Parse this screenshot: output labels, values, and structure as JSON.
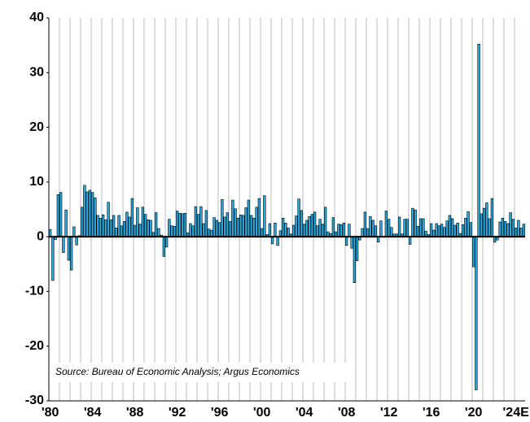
{
  "chart_data": {
    "type": "bar",
    "annotation": "Source: Bureau of Economic Analysis; Argus Economics",
    "categories": [
      "'80",
      null,
      null,
      null,
      null,
      null,
      null,
      null,
      null,
      null,
      null,
      null,
      null,
      null,
      null,
      null,
      "'84",
      null,
      null,
      null,
      null,
      null,
      null,
      null,
      null,
      null,
      null,
      null,
      null,
      null,
      null,
      null,
      "'88",
      null,
      null,
      null,
      null,
      null,
      null,
      null,
      null,
      null,
      null,
      null,
      null,
      null,
      null,
      null,
      "'92",
      null,
      null,
      null,
      null,
      null,
      null,
      null,
      null,
      null,
      null,
      null,
      null,
      null,
      null,
      null,
      "'96",
      null,
      null,
      null,
      null,
      null,
      null,
      null,
      null,
      null,
      null,
      null,
      null,
      null,
      null,
      null,
      "'00",
      null,
      null,
      null,
      null,
      null,
      null,
      null,
      null,
      null,
      null,
      null,
      null,
      null,
      null,
      null,
      "'04",
      null,
      null,
      null,
      null,
      null,
      null,
      null,
      null,
      null,
      null,
      null,
      null,
      null,
      null,
      null,
      "'08",
      null,
      null,
      null,
      null,
      null,
      null,
      null,
      null,
      null,
      null,
      null,
      null,
      null,
      null,
      null,
      "'12",
      null,
      null,
      null,
      null,
      null,
      null,
      null,
      null,
      null,
      null,
      null,
      null,
      null,
      null,
      null,
      "'16",
      null,
      null,
      null,
      null,
      null,
      null,
      null,
      null,
      null,
      null,
      null,
      null,
      null,
      null,
      null,
      "'20",
      null,
      null,
      null,
      null,
      null,
      null,
      null,
      null,
      null,
      null,
      null,
      null,
      null,
      null,
      null,
      "'24E",
      null,
      null,
      null
    ],
    "values": [
      1.3,
      -8.0,
      -0.5,
      7.7,
      8.1,
      -2.9,
      4.9,
      -4.3,
      -6.1,
      1.8,
      -1.5,
      0.2,
      5.4,
      9.4,
      8.2,
      8.5,
      8.1,
      7.1,
      3.9,
      3.4,
      4.0,
      3.1,
      6.3,
      3.1,
      3.9,
      1.6,
      3.9,
      2.0,
      2.8,
      4.5,
      3.6,
      7.0,
      2.1,
      5.3,
      2.3,
      5.4,
      4.1,
      3.1,
      3.0,
      0.8,
      4.4,
      1.5,
      0.3,
      -3.6,
      -1.9,
      3.2,
      2.0,
      1.9,
      4.7,
      4.3,
      4.2,
      4.3,
      0.7,
      2.4,
      2.0,
      5.5,
      4.1,
      5.5,
      2.4,
      4.8,
      1.4,
      1.2,
      3.5,
      3.0,
      2.6,
      6.8,
      3.6,
      4.4,
      2.8,
      6.7,
      5.1,
      3.4,
      4.0,
      3.9,
      5.3,
      6.7,
      3.9,
      3.4,
      5.4,
      7.0,
      1.5,
      7.5,
      0.4,
      2.4,
      -1.3,
      2.5,
      -1.6,
      1.1,
      3.4,
      2.5,
      1.6,
      0.5,
      2.1,
      3.8,
      6.9,
      4.8,
      2.3,
      3.0,
      3.7,
      4.1,
      4.5,
      2.0,
      3.2,
      2.3,
      5.4,
      0.9,
      0.6,
      3.5,
      0.9,
      2.3,
      2.2,
      2.5,
      -1.6,
      2.3,
      -2.1,
      -8.4,
      -4.4,
      -0.6,
      1.5,
      4.5,
      1.5,
      3.7,
      3.0,
      2.0,
      -1.0,
      2.9,
      -0.1,
      4.7,
      3.2,
      1.7,
      0.5,
      0.5,
      3.6,
      0.5,
      3.2,
      3.2,
      -1.4,
      5.2,
      4.9,
      1.9,
      3.3,
      3.3,
      1.0,
      0.4,
      2.4,
      1.2,
      2.4,
      2.0,
      2.3,
      1.7,
      2.9,
      3.9,
      3.3,
      2.1,
      2.5,
      0.6,
      2.2,
      3.4,
      4.6,
      2.6,
      -5.5,
      -28.0,
      35.2,
      4.2,
      5.2,
      6.2,
      3.3,
      7.0,
      -1.0,
      -0.6,
      2.7,
      3.4,
      2.8,
      2.4,
      4.4,
      3.2,
      1.6,
      3.0,
      1.6,
      2.3
    ],
    "color": "#29a9e0",
    "ylim": [
      -30,
      40
    ],
    "yticks": [
      -30,
      -20,
      -10,
      0,
      10,
      20,
      30,
      40
    ],
    "grid": true
  }
}
